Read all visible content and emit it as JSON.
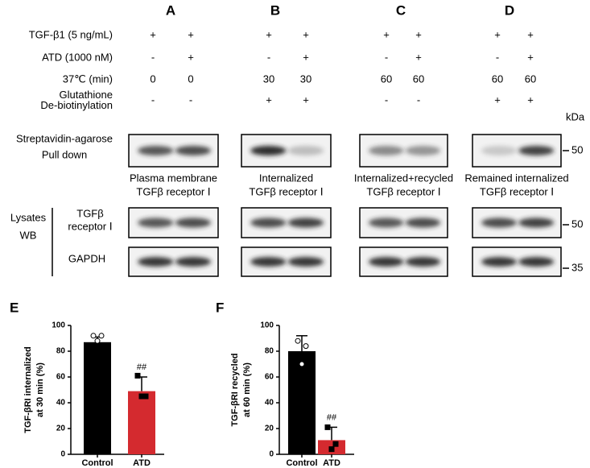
{
  "panel_labels": [
    "A",
    "B",
    "C",
    "D"
  ],
  "conditions": [
    {
      "label": [
        "TGF-β1 (5 ng/mL)"
      ],
      "values": [
        "+",
        "+",
        "+",
        "+",
        "+",
        "+",
        "+",
        "+"
      ]
    },
    {
      "label": [
        "ATD (1000 nM)"
      ],
      "values": [
        "-",
        "+",
        "-",
        "+",
        "-",
        "+",
        "-",
        "+"
      ]
    },
    {
      "label": [
        "37℃ (min)"
      ],
      "values": [
        0,
        0,
        30,
        30,
        60,
        60,
        60,
        60
      ]
    },
    {
      "label": [
        "Glutathione",
        "De-biotinylation"
      ],
      "values": [
        "-",
        "-",
        "+",
        "+",
        "-",
        "-",
        "+",
        "+"
      ]
    }
  ],
  "kda_label": "kDa",
  "pulldown_label": [
    "Streptavidin-agarose",
    "Pull down"
  ],
  "captions": [
    [
      "Plasma membrane",
      "TGFβ receptor Ⅰ"
    ],
    [
      "Internalized",
      "TGFβ receptor Ⅰ"
    ],
    [
      "Internalized+recycled",
      "TGFβ receptor Ⅰ"
    ],
    [
      "Remained internalized",
      "TGFβ receptor Ⅰ"
    ]
  ],
  "lysates_label": [
    "Lysates",
    "WB"
  ],
  "tgfb_label": [
    "TGFβ",
    "receptor Ⅰ"
  ],
  "gapdh_label": "GAPDH",
  "markers": {
    "pulldown": 50,
    "tgfb": 50,
    "gapdh": 35
  },
  "chart_data": [
    {
      "panel": "E",
      "type": "bar",
      "y_label": [
        "TGF-βRI internalized",
        "at 30 min (%)"
      ],
      "categories": [
        "Control",
        "ATD"
      ],
      "values": [
        87,
        49
      ],
      "errors": [
        4,
        11
      ],
      "points": [
        [
          92,
          92,
          88
        ],
        [
          61,
          45,
          45
        ]
      ],
      "colors": [
        "#000000",
        "#d42a2f"
      ],
      "ylim": [
        0,
        100
      ],
      "yticks": [
        0,
        20,
        40,
        60,
        80,
        100
      ],
      "annotations": [
        {
          "category": "ATD",
          "text": "##"
        }
      ]
    },
    {
      "panel": "F",
      "type": "bar",
      "y_label": [
        "TGF-βRI recycled",
        "at 60 min (%)"
      ],
      "categories": [
        "Control",
        "ATD"
      ],
      "values": [
        80,
        11
      ],
      "errors": [
        12,
        10
      ],
      "points": [
        [
          88,
          84,
          70
        ],
        [
          21,
          8,
          4
        ]
      ],
      "colors": [
        "#000000",
        "#d42a2f"
      ],
      "ylim": [
        0,
        100
      ],
      "yticks": [
        0,
        20,
        40,
        60,
        80,
        100
      ],
      "annotations": [
        {
          "category": "ATD",
          "text": "##"
        }
      ]
    }
  ]
}
